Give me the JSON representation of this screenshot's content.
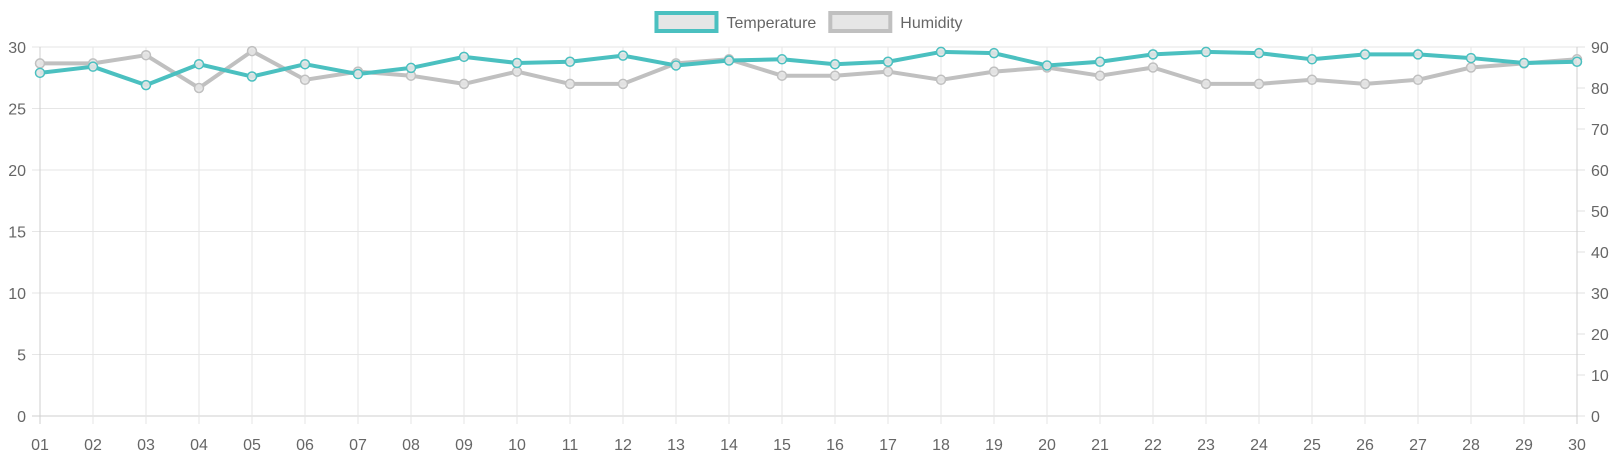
{
  "chart_data": {
    "type": "line",
    "title": "",
    "xlabel": "",
    "ylabel": "",
    "legend_position": "top-center",
    "grid": true,
    "categories": [
      "01",
      "02",
      "03",
      "04",
      "05",
      "06",
      "07",
      "08",
      "09",
      "10",
      "11",
      "12",
      "13",
      "14",
      "15",
      "16",
      "17",
      "18",
      "19",
      "20",
      "21",
      "22",
      "23",
      "24",
      "25",
      "26",
      "27",
      "28",
      "29",
      "30"
    ],
    "y_left": {
      "min": 0,
      "max": 30,
      "ticks": [
        0,
        5,
        10,
        15,
        20,
        25,
        30
      ]
    },
    "y_right": {
      "min": 0,
      "max": 90,
      "ticks": [
        0,
        10,
        20,
        30,
        40,
        50,
        60,
        70,
        80,
        90
      ]
    },
    "series": [
      {
        "name": "Temperature",
        "axis": "left",
        "color": "#4bc0c0",
        "values": [
          27.9,
          28.4,
          26.9,
          28.6,
          27.6,
          28.6,
          27.8,
          28.3,
          29.2,
          28.7,
          28.8,
          29.3,
          28.5,
          28.9,
          29.0,
          28.6,
          28.8,
          29.6,
          29.5,
          28.5,
          28.8,
          29.4,
          29.6,
          29.5,
          29.0,
          29.4,
          29.4,
          29.1,
          28.7,
          28.8
        ]
      },
      {
        "name": "Humidity",
        "axis": "right",
        "color": "#c0c0c0",
        "values": [
          86,
          86,
          88,
          80,
          89,
          82,
          84,
          83,
          81,
          84,
          81,
          81,
          86,
          87,
          83,
          83,
          84,
          82,
          84,
          85,
          83,
          85,
          81,
          81,
          82,
          81,
          82,
          85,
          86,
          87
        ]
      }
    ]
  }
}
